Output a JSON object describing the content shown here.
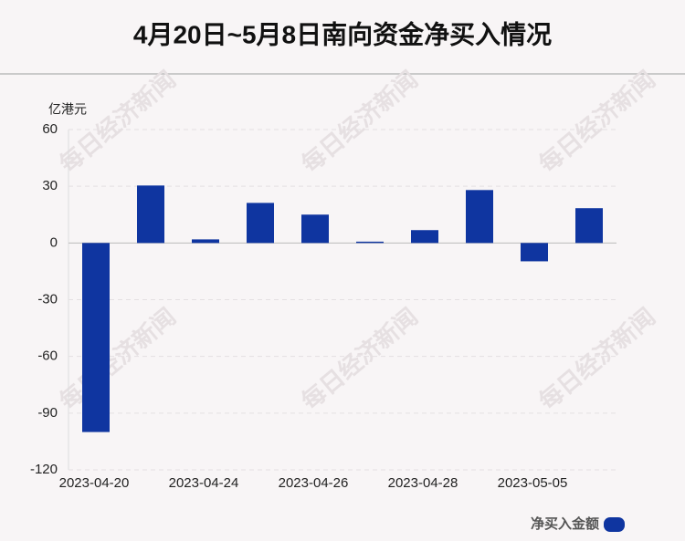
{
  "chart_data": {
    "type": "bar",
    "title": "4月20日~5月8日南向资金净买入情况",
    "y_unit": "亿港元",
    "watermark": "每日经济新闻",
    "categories": [
      "2023-04-20",
      null,
      "2023-04-24",
      null,
      "2023-04-26",
      null,
      "2023-04-28",
      null,
      "2023-05-05",
      null
    ],
    "series": [
      {
        "name": "净买入金额",
        "color": "#0f35a0",
        "values": [
          -100,
          30.4,
          1.9,
          21.2,
          15,
          0.7,
          6.8,
          28,
          -9.7,
          18.4
        ]
      }
    ],
    "ylim": [
      -120,
      60
    ],
    "yticks": [
      -120,
      -90,
      -60,
      -30,
      0,
      30,
      60
    ],
    "grid": true,
    "legend": "bottom-right"
  }
}
